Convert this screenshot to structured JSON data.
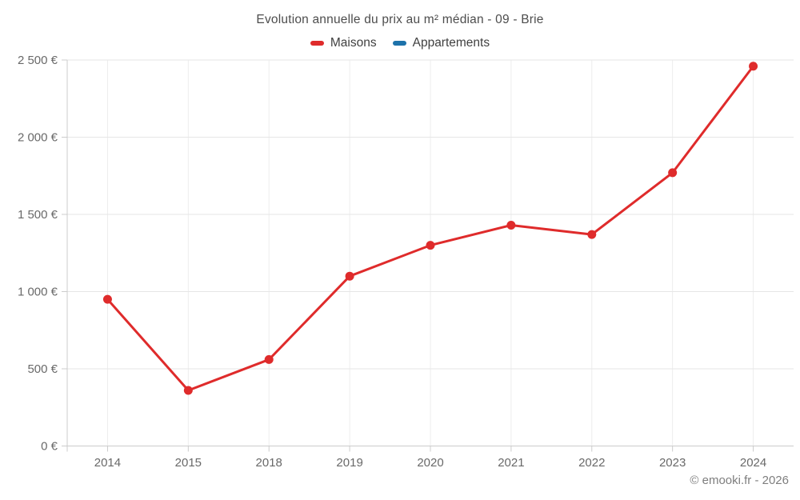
{
  "chart_data": {
    "type": "line",
    "title": "Evolution annuelle du prix au m² médian - 09 - Brie",
    "categories": [
      "2014",
      "2015",
      "2018",
      "2019",
      "2020",
      "2021",
      "2022",
      "2023",
      "2024"
    ],
    "series": [
      {
        "name": "Maisons",
        "color": "#df2b2b",
        "values": [
          950,
          360,
          560,
          1100,
          1300,
          1430,
          1370,
          1770,
          2460
        ]
      },
      {
        "name": "Appartements",
        "color": "#1d72aa",
        "values": []
      }
    ],
    "xlabel": "",
    "ylabel": "",
    "ylim": [
      0,
      2500
    ],
    "yticks": [
      {
        "value": 0,
        "label": "0 €"
      },
      {
        "value": 500,
        "label": "500 €"
      },
      {
        "value": 1000,
        "label": "1 000 €"
      },
      {
        "value": 1500,
        "label": "1 500 €"
      },
      {
        "value": 2000,
        "label": "2 000 €"
      },
      {
        "value": 2500,
        "label": "2 500 €"
      }
    ],
    "grid": true,
    "legend_position": "top",
    "marker": "circle"
  },
  "footer": {
    "attribution": "© emooki.fr - 2026"
  },
  "style": {
    "background": "#ffffff",
    "grid_color_horizontal": "#e6e6e6",
    "grid_color_vertical": "#ededed",
    "axis_color": "#cccccc",
    "tick_label_color": "#696969",
    "title_color": "#4d4d4d",
    "legend_text_color": "#404040",
    "attribution_color": "#7e7e7e"
  }
}
